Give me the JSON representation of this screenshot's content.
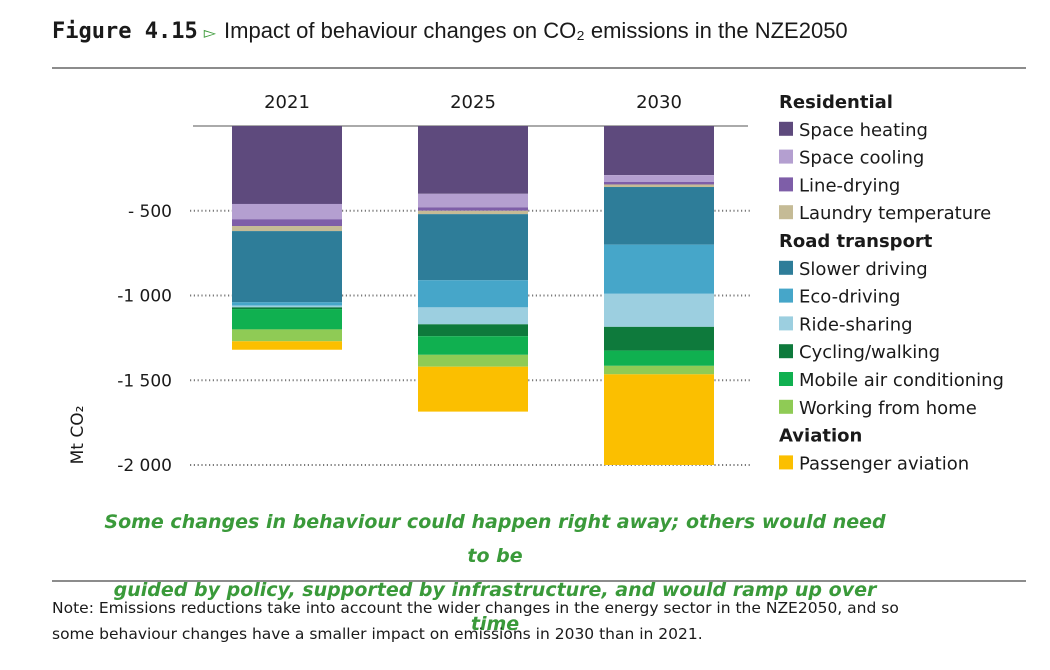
{
  "figure": {
    "number": "Figure 4.15",
    "arrow": "▻",
    "title": "Impact of behaviour changes on CO₂ emissions in the NZE2050"
  },
  "caption": {
    "line1": "Some changes in behaviour could happen right away; others would need to be",
    "line2": "guided by policy, supported by infrastructure, and would ramp up over time"
  },
  "note": {
    "line1": "Note: Emissions reductions take into account the wider changes in the energy sector in the NZE2050, and so",
    "line2": "some behaviour changes have a smaller impact on emissions in 2030 than in 2021."
  },
  "chart_data": {
    "type": "bar",
    "stacked": true,
    "categories": [
      "2021",
      "2025",
      "2030"
    ],
    "ylabel": "Mt CO₂",
    "ylim": [
      -2000,
      0
    ],
    "yticks": [
      -500,
      -1000,
      -1500,
      -2000
    ],
    "ytick_labels": [
      "- 500",
      "-1 000",
      "-1 500",
      "-2 000"
    ],
    "grid": "dotted",
    "legend_position": "right",
    "legend_groups": [
      {
        "title": "Residential",
        "items": [
          "Space heating",
          "Space cooling",
          "Line-drying",
          "Laundry temperature"
        ]
      },
      {
        "title": "Road transport",
        "items": [
          "Slower driving",
          "Eco-driving",
          "Ride-sharing",
          "Cycling/walking",
          "Mobile air conditioning",
          "Working from home"
        ]
      },
      {
        "title": "Aviation",
        "items": [
          "Passenger aviation"
        ]
      }
    ],
    "series": [
      {
        "name": "Space heating",
        "color": "#5e4a7d",
        "values": [
          -460,
          -400,
          -290
        ]
      },
      {
        "name": "Space cooling",
        "color": "#b49fd0",
        "values": [
          -90,
          -80,
          -40
        ]
      },
      {
        "name": "Line-drying",
        "color": "#7e5ea8",
        "values": [
          -40,
          -20,
          -15
        ]
      },
      {
        "name": "Laundry temperature",
        "color": "#c5bb96",
        "values": [
          -30,
          -20,
          -15
        ]
      },
      {
        "name": "Slower driving",
        "color": "#2e7d99",
        "values": [
          -420,
          -390,
          -340
        ]
      },
      {
        "name": "Eco-driving",
        "color": "#46a6c9",
        "values": [
          -20,
          -160,
          -290
        ]
      },
      {
        "name": "Ride-sharing",
        "color": "#9ccfe0",
        "values": [
          -10,
          -100,
          -195
        ]
      },
      {
        "name": "Cycling/walking",
        "color": "#0e7a3c",
        "values": [
          -10,
          -70,
          -140
        ]
      },
      {
        "name": "Mobile air conditioning",
        "color": "#10b050",
        "values": [
          -120,
          -110,
          -90
        ]
      },
      {
        "name": "Working from home",
        "color": "#8fcb55",
        "values": [
          -70,
          -70,
          -50
        ]
      },
      {
        "name": "Passenger aviation",
        "color": "#fbbf00",
        "values": [
          -50,
          -265,
          -535
        ]
      }
    ]
  }
}
